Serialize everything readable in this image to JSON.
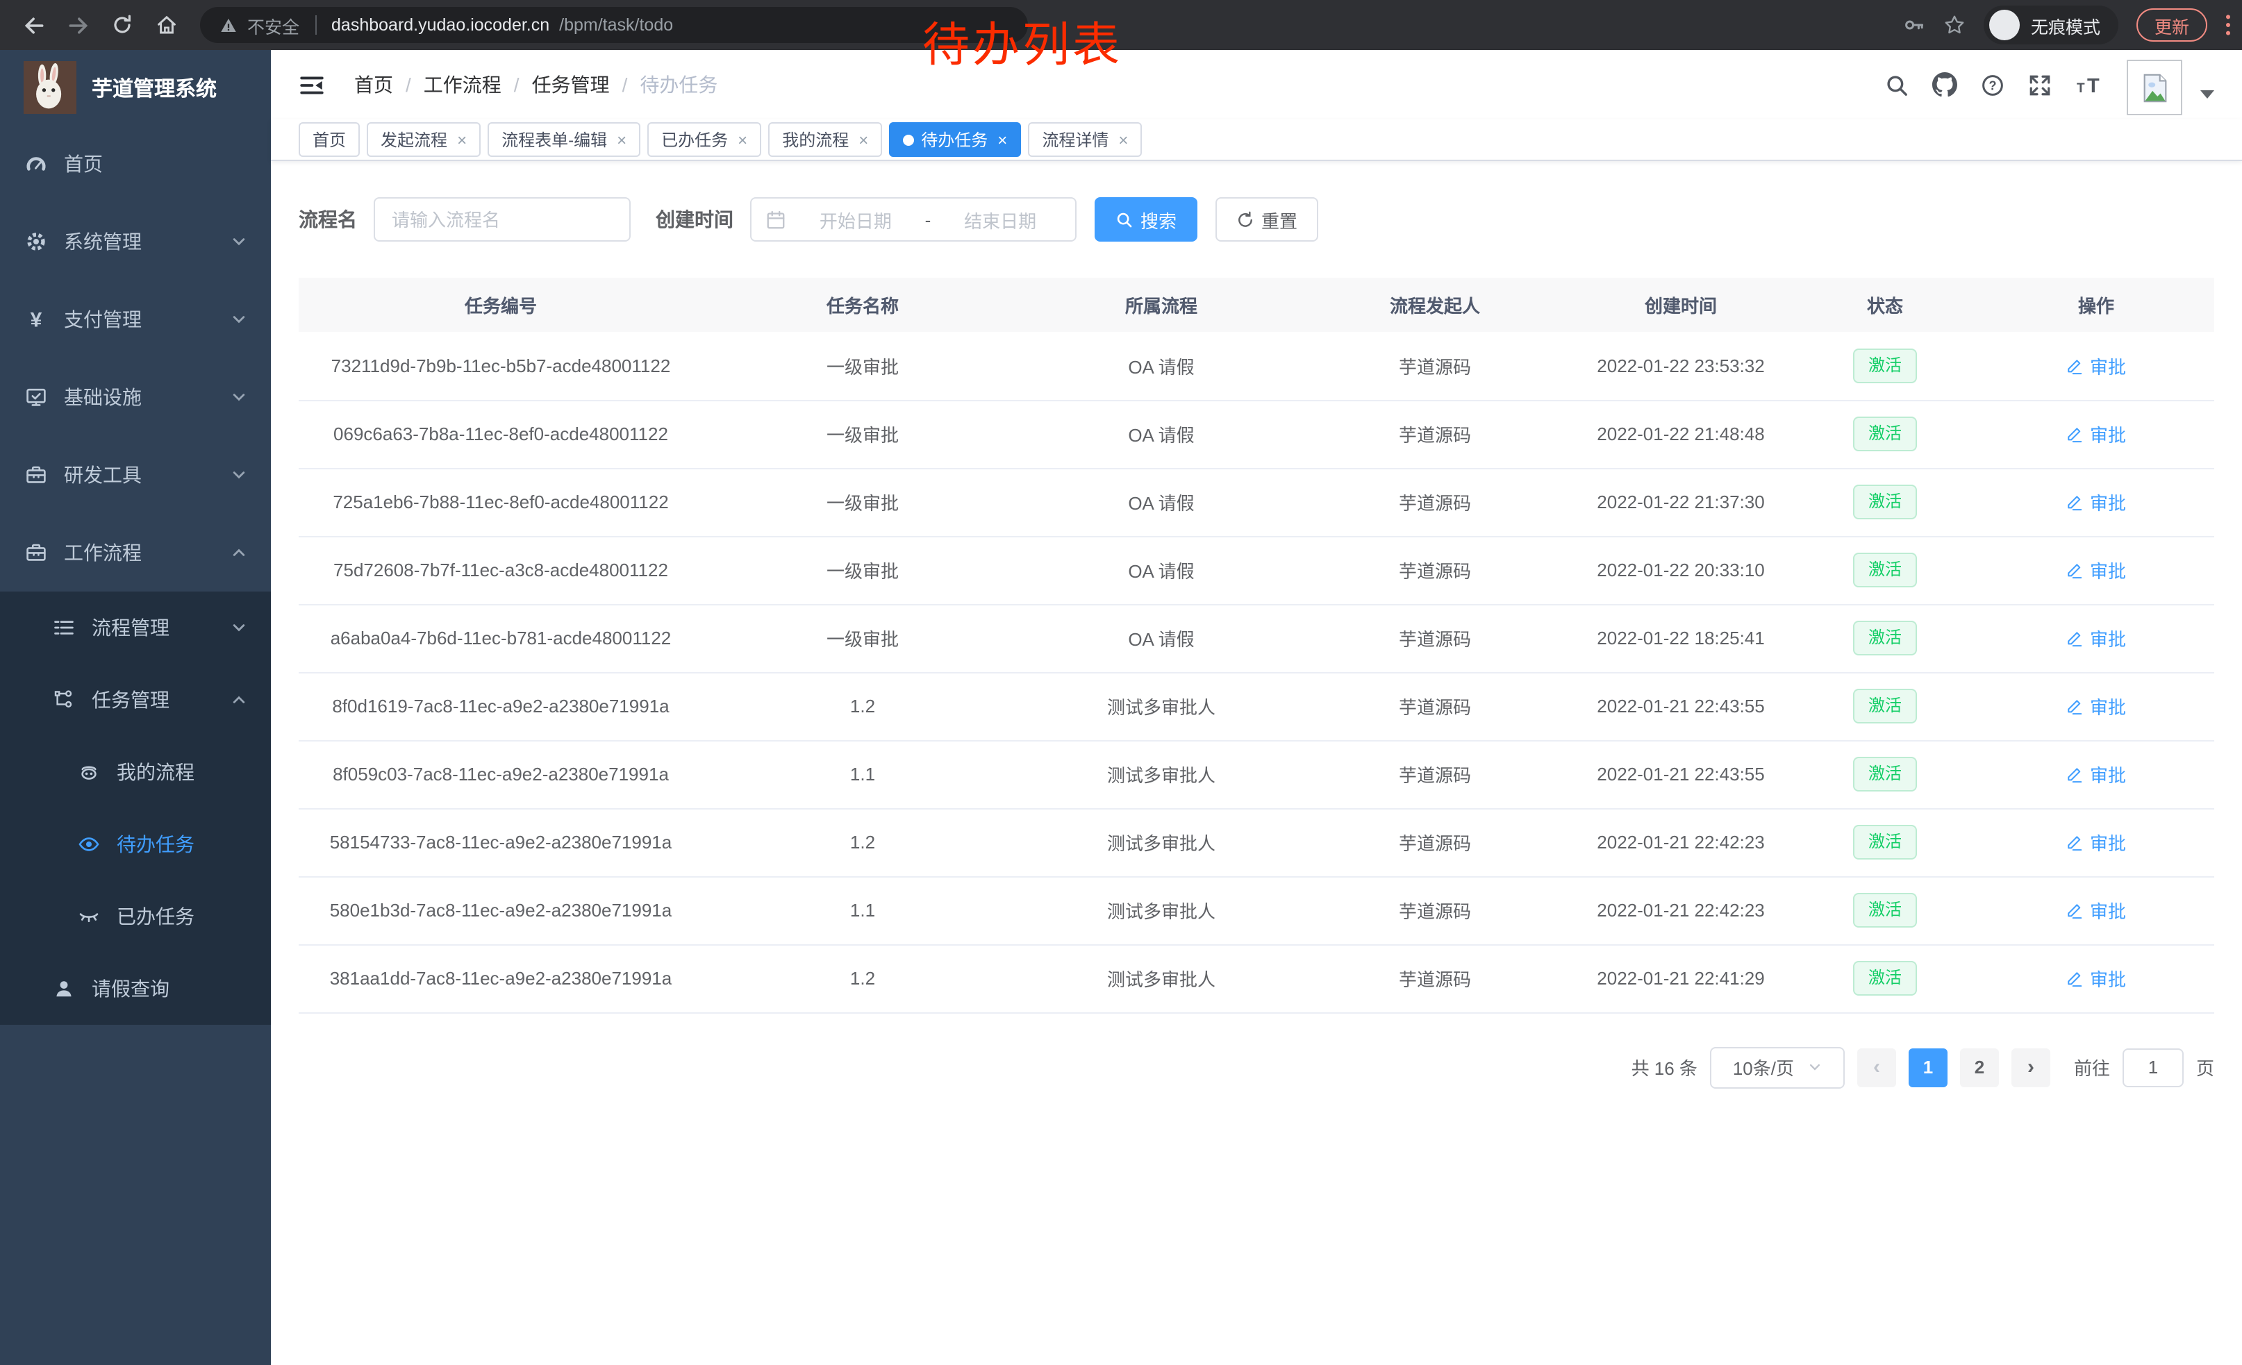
{
  "browser": {
    "security_label": "不安全",
    "url_host": "dashboard.yudao.iocoder.cn",
    "url_path": "/bpm/task/todo",
    "incognito_label": "无痕模式",
    "update_label": "更新"
  },
  "annotation": {
    "text": "待办列表",
    "color": "#fb2c00"
  },
  "sidebar": {
    "title": "芋道管理系统",
    "items": [
      {
        "label": "首页",
        "icon": "gauge-icon",
        "level": 1
      },
      {
        "label": "系统管理",
        "icon": "gear-icon",
        "level": 1,
        "chevron": "down"
      },
      {
        "label": "支付管理",
        "icon": "yen-icon",
        "level": 1,
        "chevron": "down"
      },
      {
        "label": "基础设施",
        "icon": "monitor-icon",
        "level": 1,
        "chevron": "down"
      },
      {
        "label": "研发工具",
        "icon": "toolbox-icon",
        "level": 1,
        "chevron": "down"
      },
      {
        "label": "工作流程",
        "icon": "briefcase-icon",
        "level": 1,
        "chevron": "up"
      },
      {
        "label": "流程管理",
        "icon": "list-icon",
        "level": 2,
        "chevron": "down",
        "submenu": true
      },
      {
        "label": "任务管理",
        "icon": "flow-icon",
        "level": 2,
        "chevron": "up",
        "submenu": true
      },
      {
        "label": "我的流程",
        "icon": "robot-icon",
        "level": 3,
        "submenu": true
      },
      {
        "label": "待办任务",
        "icon": "eye-icon",
        "level": 3,
        "submenu": true,
        "active": true
      },
      {
        "label": "已办任务",
        "icon": "eye-closed-icon",
        "level": 3,
        "submenu": true
      },
      {
        "label": "请假查询",
        "icon": "user-icon",
        "level": 2,
        "submenu": true
      }
    ]
  },
  "header": {
    "breadcrumb": [
      "首页",
      "工作流程",
      "任务管理",
      "待办任务"
    ]
  },
  "tabs": [
    {
      "label": "首页",
      "closable": false,
      "active": false
    },
    {
      "label": "发起流程",
      "closable": true,
      "active": false
    },
    {
      "label": "流程表单-编辑",
      "closable": true,
      "active": false
    },
    {
      "label": "已办任务",
      "closable": true,
      "active": false
    },
    {
      "label": "我的流程",
      "closable": true,
      "active": false
    },
    {
      "label": "待办任务",
      "closable": true,
      "active": true
    },
    {
      "label": "流程详情",
      "closable": true,
      "active": false
    }
  ],
  "filters": {
    "name_label": "流程名",
    "name_placeholder": "请输入流程名",
    "time_label": "创建时间",
    "start_placeholder": "开始日期",
    "separator": "-",
    "end_placeholder": "结束日期",
    "search_label": "搜索",
    "reset_label": "重置"
  },
  "table": {
    "columns": [
      "任务编号",
      "任务名称",
      "所属流程",
      "流程发起人",
      "创建时间",
      "状态",
      "操作"
    ],
    "rows": [
      {
        "id": "73211d9d-7b9b-11ec-b5b7-acde48001122",
        "name": "一级审批",
        "process": "OA 请假",
        "starter": "芋道源码",
        "time": "2022-01-22 23:53:32",
        "status": "激活",
        "action": "审批"
      },
      {
        "id": "069c6a63-7b8a-11ec-8ef0-acde48001122",
        "name": "一级审批",
        "process": "OA 请假",
        "starter": "芋道源码",
        "time": "2022-01-22 21:48:48",
        "status": "激活",
        "action": "审批"
      },
      {
        "id": "725a1eb6-7b88-11ec-8ef0-acde48001122",
        "name": "一级审批",
        "process": "OA 请假",
        "starter": "芋道源码",
        "time": "2022-01-22 21:37:30",
        "status": "激活",
        "action": "审批"
      },
      {
        "id": "75d72608-7b7f-11ec-a3c8-acde48001122",
        "name": "一级审批",
        "process": "OA 请假",
        "starter": "芋道源码",
        "time": "2022-01-22 20:33:10",
        "status": "激活",
        "action": "审批"
      },
      {
        "id": "a6aba0a4-7b6d-11ec-b781-acde48001122",
        "name": "一级审批",
        "process": "OA 请假",
        "starter": "芋道源码",
        "time": "2022-01-22 18:25:41",
        "status": "激活",
        "action": "审批"
      },
      {
        "id": "8f0d1619-7ac8-11ec-a9e2-a2380e71991a",
        "name": "1.2",
        "process": "测试多审批人",
        "starter": "芋道源码",
        "time": "2022-01-21 22:43:55",
        "status": "激活",
        "action": "审批"
      },
      {
        "id": "8f059c03-7ac8-11ec-a9e2-a2380e71991a",
        "name": "1.1",
        "process": "测试多审批人",
        "starter": "芋道源码",
        "time": "2022-01-21 22:43:55",
        "status": "激活",
        "action": "审批"
      },
      {
        "id": "58154733-7ac8-11ec-a9e2-a2380e71991a",
        "name": "1.2",
        "process": "测试多审批人",
        "starter": "芋道源码",
        "time": "2022-01-21 22:42:23",
        "status": "激活",
        "action": "审批"
      },
      {
        "id": "580e1b3d-7ac8-11ec-a9e2-a2380e71991a",
        "name": "1.1",
        "process": "测试多审批人",
        "starter": "芋道源码",
        "time": "2022-01-21 22:42:23",
        "status": "激活",
        "action": "审批"
      },
      {
        "id": "381aa1dd-7ac8-11ec-a9e2-a2380e71991a",
        "name": "1.2",
        "process": "测试多审批人",
        "starter": "芋道源码",
        "time": "2022-01-21 22:41:29",
        "status": "激活",
        "action": "审批"
      }
    ]
  },
  "pagination": {
    "total_label": "共 16 条",
    "page_size": "10条/页",
    "pages": [
      "1",
      "2"
    ],
    "active_page": "1",
    "prev_label": "‹",
    "next_label": "›",
    "goto_label": "前往",
    "goto_value": "1",
    "page_label": "页"
  },
  "colors": {
    "accent": "#409eff",
    "active_tab": "#2d8cf0",
    "status_green": "#13ce66",
    "annotation_red": "#fb2c00",
    "sidebar_bg": "#304156",
    "submenu_bg": "#212f3f"
  }
}
